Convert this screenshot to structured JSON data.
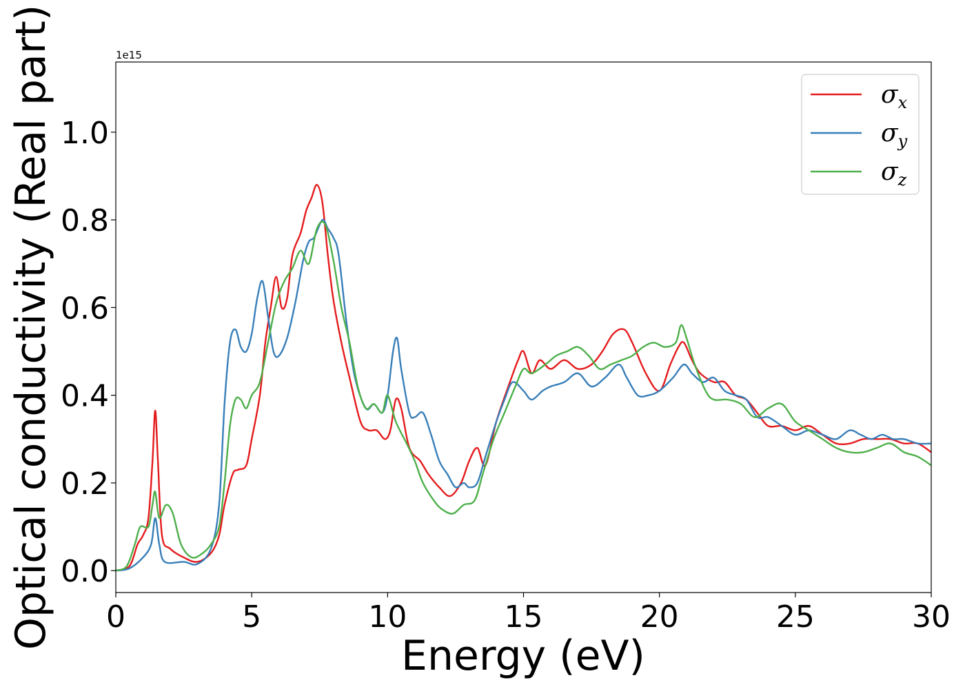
{
  "chart_data": {
    "type": "line",
    "title": "",
    "xlabel": "Energy (eV)",
    "ylabel": "Optical conductivity (Real part)",
    "y_offset_label": "1e15",
    "xlim": [
      0,
      30
    ],
    "ylim": [
      -0.05,
      1.16
    ],
    "x_ticks": [
      0,
      5,
      10,
      15,
      20,
      25,
      30
    ],
    "x_tick_labels": [
      "0",
      "5",
      "10",
      "15",
      "20",
      "25",
      "30"
    ],
    "y_ticks": [
      0.0,
      0.2,
      0.4,
      0.6,
      0.8,
      1.0
    ],
    "y_tick_labels": [
      "0.0",
      "0.2",
      "0.4",
      "0.6",
      "0.8",
      "1.0"
    ],
    "grid": false,
    "legend_position": "top-right",
    "series": [
      {
        "name": "σx",
        "symbol": "σ",
        "subscript": "x",
        "color": "#e41a1c",
        "points": [
          [
            0,
            0
          ],
          [
            0.5,
            0.01
          ],
          [
            0.8,
            0.06
          ],
          [
            1.0,
            0.08
          ],
          [
            1.2,
            0.12
          ],
          [
            1.35,
            0.25
          ],
          [
            1.45,
            0.365
          ],
          [
            1.55,
            0.25
          ],
          [
            1.7,
            0.08
          ],
          [
            2.0,
            0.05
          ],
          [
            2.5,
            0.03
          ],
          [
            3.0,
            0.02
          ],
          [
            3.5,
            0.04
          ],
          [
            3.8,
            0.08
          ],
          [
            4.0,
            0.15
          ],
          [
            4.3,
            0.22
          ],
          [
            4.5,
            0.23
          ],
          [
            4.8,
            0.24
          ],
          [
            5.0,
            0.3
          ],
          [
            5.3,
            0.4
          ],
          [
            5.5,
            0.52
          ],
          [
            5.7,
            0.6
          ],
          [
            5.9,
            0.67
          ],
          [
            6.1,
            0.6
          ],
          [
            6.3,
            0.62
          ],
          [
            6.5,
            0.72
          ],
          [
            6.8,
            0.77
          ],
          [
            7.0,
            0.82
          ],
          [
            7.2,
            0.85
          ],
          [
            7.4,
            0.88
          ],
          [
            7.6,
            0.84
          ],
          [
            7.8,
            0.72
          ],
          [
            8.0,
            0.62
          ],
          [
            8.3,
            0.52
          ],
          [
            8.6,
            0.44
          ],
          [
            9.0,
            0.34
          ],
          [
            9.3,
            0.32
          ],
          [
            9.6,
            0.32
          ],
          [
            9.9,
            0.3
          ],
          [
            10.1,
            0.32
          ],
          [
            10.3,
            0.39
          ],
          [
            10.5,
            0.37
          ],
          [
            10.8,
            0.28
          ],
          [
            11.2,
            0.25
          ],
          [
            11.5,
            0.22
          ],
          [
            11.9,
            0.19
          ],
          [
            12.3,
            0.17
          ],
          [
            12.7,
            0.2
          ],
          [
            13.0,
            0.25
          ],
          [
            13.3,
            0.28
          ],
          [
            13.6,
            0.24
          ],
          [
            14.0,
            0.34
          ],
          [
            14.5,
            0.43
          ],
          [
            14.8,
            0.48
          ],
          [
            15.0,
            0.5
          ],
          [
            15.3,
            0.45
          ],
          [
            15.6,
            0.48
          ],
          [
            16.0,
            0.46
          ],
          [
            16.5,
            0.48
          ],
          [
            17.0,
            0.46
          ],
          [
            17.5,
            0.47
          ],
          [
            17.9,
            0.5
          ],
          [
            18.3,
            0.54
          ],
          [
            18.7,
            0.55
          ],
          [
            19.0,
            0.52
          ],
          [
            19.5,
            0.45
          ],
          [
            20.0,
            0.41
          ],
          [
            20.4,
            0.47
          ],
          [
            20.7,
            0.51
          ],
          [
            20.9,
            0.52
          ],
          [
            21.2,
            0.48
          ],
          [
            21.5,
            0.45
          ],
          [
            22.0,
            0.43
          ],
          [
            22.4,
            0.43
          ],
          [
            22.8,
            0.4
          ],
          [
            23.2,
            0.39
          ],
          [
            23.6,
            0.36
          ],
          [
            24.0,
            0.33
          ],
          [
            24.5,
            0.33
          ],
          [
            25.0,
            0.32
          ],
          [
            25.5,
            0.33
          ],
          [
            26.0,
            0.31
          ],
          [
            26.5,
            0.29
          ],
          [
            27.0,
            0.29
          ],
          [
            27.5,
            0.3
          ],
          [
            28.0,
            0.3
          ],
          [
            28.5,
            0.3
          ],
          [
            29.0,
            0.29
          ],
          [
            29.5,
            0.29
          ],
          [
            30,
            0.27
          ]
        ]
      },
      {
        "name": "σy",
        "symbol": "σ",
        "subscript": "y",
        "color": "#377eb8",
        "points": [
          [
            0,
            0
          ],
          [
            0.5,
            0.005
          ],
          [
            1.0,
            0.03
          ],
          [
            1.3,
            0.06
          ],
          [
            1.45,
            0.12
          ],
          [
            1.6,
            0.06
          ],
          [
            1.8,
            0.02
          ],
          [
            2.5,
            0.02
          ],
          [
            3.0,
            0.015
          ],
          [
            3.5,
            0.05
          ],
          [
            3.8,
            0.15
          ],
          [
            4.0,
            0.38
          ],
          [
            4.2,
            0.52
          ],
          [
            4.4,
            0.55
          ],
          [
            4.6,
            0.51
          ],
          [
            4.8,
            0.5
          ],
          [
            5.0,
            0.54
          ],
          [
            5.2,
            0.62
          ],
          [
            5.4,
            0.66
          ],
          [
            5.6,
            0.58
          ],
          [
            5.8,
            0.5
          ],
          [
            6.0,
            0.49
          ],
          [
            6.3,
            0.53
          ],
          [
            6.6,
            0.61
          ],
          [
            6.9,
            0.71
          ],
          [
            7.1,
            0.75
          ],
          [
            7.3,
            0.76
          ],
          [
            7.6,
            0.8
          ],
          [
            7.8,
            0.78
          ],
          [
            8.0,
            0.76
          ],
          [
            8.2,
            0.72
          ],
          [
            8.5,
            0.56
          ],
          [
            8.8,
            0.44
          ],
          [
            9.2,
            0.37
          ],
          [
            9.5,
            0.38
          ],
          [
            9.8,
            0.36
          ],
          [
            10.0,
            0.4
          ],
          [
            10.2,
            0.5
          ],
          [
            10.35,
            0.53
          ],
          [
            10.5,
            0.46
          ],
          [
            10.8,
            0.36
          ],
          [
            11.0,
            0.35
          ],
          [
            11.3,
            0.36
          ],
          [
            11.6,
            0.31
          ],
          [
            11.9,
            0.25
          ],
          [
            12.2,
            0.22
          ],
          [
            12.5,
            0.19
          ],
          [
            12.8,
            0.2
          ],
          [
            13.0,
            0.19
          ],
          [
            13.3,
            0.2
          ],
          [
            13.6,
            0.26
          ],
          [
            14.0,
            0.34
          ],
          [
            14.3,
            0.39
          ],
          [
            14.6,
            0.43
          ],
          [
            15.0,
            0.41
          ],
          [
            15.3,
            0.39
          ],
          [
            15.7,
            0.41
          ],
          [
            16.0,
            0.42
          ],
          [
            16.5,
            0.43
          ],
          [
            17.0,
            0.45
          ],
          [
            17.5,
            0.42
          ],
          [
            18.0,
            0.44
          ],
          [
            18.5,
            0.47
          ],
          [
            18.8,
            0.44
          ],
          [
            19.2,
            0.4
          ],
          [
            19.6,
            0.4
          ],
          [
            20.0,
            0.41
          ],
          [
            20.5,
            0.44
          ],
          [
            20.9,
            0.47
          ],
          [
            21.2,
            0.45
          ],
          [
            21.6,
            0.43
          ],
          [
            22.0,
            0.44
          ],
          [
            22.4,
            0.41
          ],
          [
            22.8,
            0.4
          ],
          [
            23.2,
            0.39
          ],
          [
            23.6,
            0.35
          ],
          [
            24.0,
            0.35
          ],
          [
            24.5,
            0.33
          ],
          [
            25.0,
            0.31
          ],
          [
            25.5,
            0.32
          ],
          [
            26.0,
            0.31
          ],
          [
            26.5,
            0.3
          ],
          [
            27.0,
            0.32
          ],
          [
            27.4,
            0.31
          ],
          [
            27.8,
            0.3
          ],
          [
            28.2,
            0.31
          ],
          [
            28.6,
            0.3
          ],
          [
            29.0,
            0.3
          ],
          [
            29.5,
            0.29
          ],
          [
            30,
            0.29
          ]
        ]
      },
      {
        "name": "σz",
        "symbol": "σ",
        "subscript": "z",
        "color": "#4daf4a",
        "points": [
          [
            0,
            0
          ],
          [
            0.4,
            0.01
          ],
          [
            0.7,
            0.06
          ],
          [
            0.9,
            0.1
          ],
          [
            1.2,
            0.1
          ],
          [
            1.35,
            0.15
          ],
          [
            1.45,
            0.18
          ],
          [
            1.6,
            0.12
          ],
          [
            1.85,
            0.15
          ],
          [
            2.1,
            0.13
          ],
          [
            2.4,
            0.06
          ],
          [
            2.8,
            0.03
          ],
          [
            3.2,
            0.04
          ],
          [
            3.5,
            0.06
          ],
          [
            3.8,
            0.1
          ],
          [
            4.0,
            0.2
          ],
          [
            4.2,
            0.33
          ],
          [
            4.4,
            0.39
          ],
          [
            4.6,
            0.39
          ],
          [
            4.8,
            0.37
          ],
          [
            5.0,
            0.4
          ],
          [
            5.3,
            0.43
          ],
          [
            5.6,
            0.52
          ],
          [
            5.9,
            0.61
          ],
          [
            6.2,
            0.66
          ],
          [
            6.5,
            0.69
          ],
          [
            6.8,
            0.73
          ],
          [
            7.1,
            0.7
          ],
          [
            7.4,
            0.78
          ],
          [
            7.7,
            0.79
          ],
          [
            8.0,
            0.71
          ],
          [
            8.3,
            0.6
          ],
          [
            8.6,
            0.52
          ],
          [
            8.9,
            0.42
          ],
          [
            9.2,
            0.37
          ],
          [
            9.5,
            0.38
          ],
          [
            9.8,
            0.36
          ],
          [
            10.0,
            0.4
          ],
          [
            10.3,
            0.34
          ],
          [
            10.7,
            0.29
          ],
          [
            11.0,
            0.25
          ],
          [
            11.3,
            0.2
          ],
          [
            11.7,
            0.16
          ],
          [
            12.0,
            0.14
          ],
          [
            12.4,
            0.13
          ],
          [
            12.8,
            0.15
          ],
          [
            13.2,
            0.16
          ],
          [
            13.5,
            0.22
          ],
          [
            13.9,
            0.3
          ],
          [
            14.3,
            0.36
          ],
          [
            14.7,
            0.42
          ],
          [
            15.0,
            0.46
          ],
          [
            15.3,
            0.45
          ],
          [
            15.8,
            0.47
          ],
          [
            16.2,
            0.49
          ],
          [
            16.6,
            0.5
          ],
          [
            17.0,
            0.51
          ],
          [
            17.4,
            0.49
          ],
          [
            17.8,
            0.46
          ],
          [
            18.2,
            0.47
          ],
          [
            18.6,
            0.48
          ],
          [
            19.0,
            0.49
          ],
          [
            19.4,
            0.51
          ],
          [
            19.8,
            0.52
          ],
          [
            20.2,
            0.51
          ],
          [
            20.6,
            0.52
          ],
          [
            20.8,
            0.56
          ],
          [
            21.0,
            0.53
          ],
          [
            21.3,
            0.47
          ],
          [
            21.7,
            0.41
          ],
          [
            22.0,
            0.39
          ],
          [
            22.5,
            0.39
          ],
          [
            23.0,
            0.38
          ],
          [
            23.5,
            0.35
          ],
          [
            24.0,
            0.37
          ],
          [
            24.5,
            0.38
          ],
          [
            25.0,
            0.34
          ],
          [
            25.5,
            0.32
          ],
          [
            26.0,
            0.3
          ],
          [
            26.5,
            0.28
          ],
          [
            27.0,
            0.27
          ],
          [
            27.5,
            0.27
          ],
          [
            28.0,
            0.28
          ],
          [
            28.5,
            0.29
          ],
          [
            29.0,
            0.27
          ],
          [
            29.5,
            0.26
          ],
          [
            30,
            0.24
          ]
        ]
      }
    ]
  }
}
